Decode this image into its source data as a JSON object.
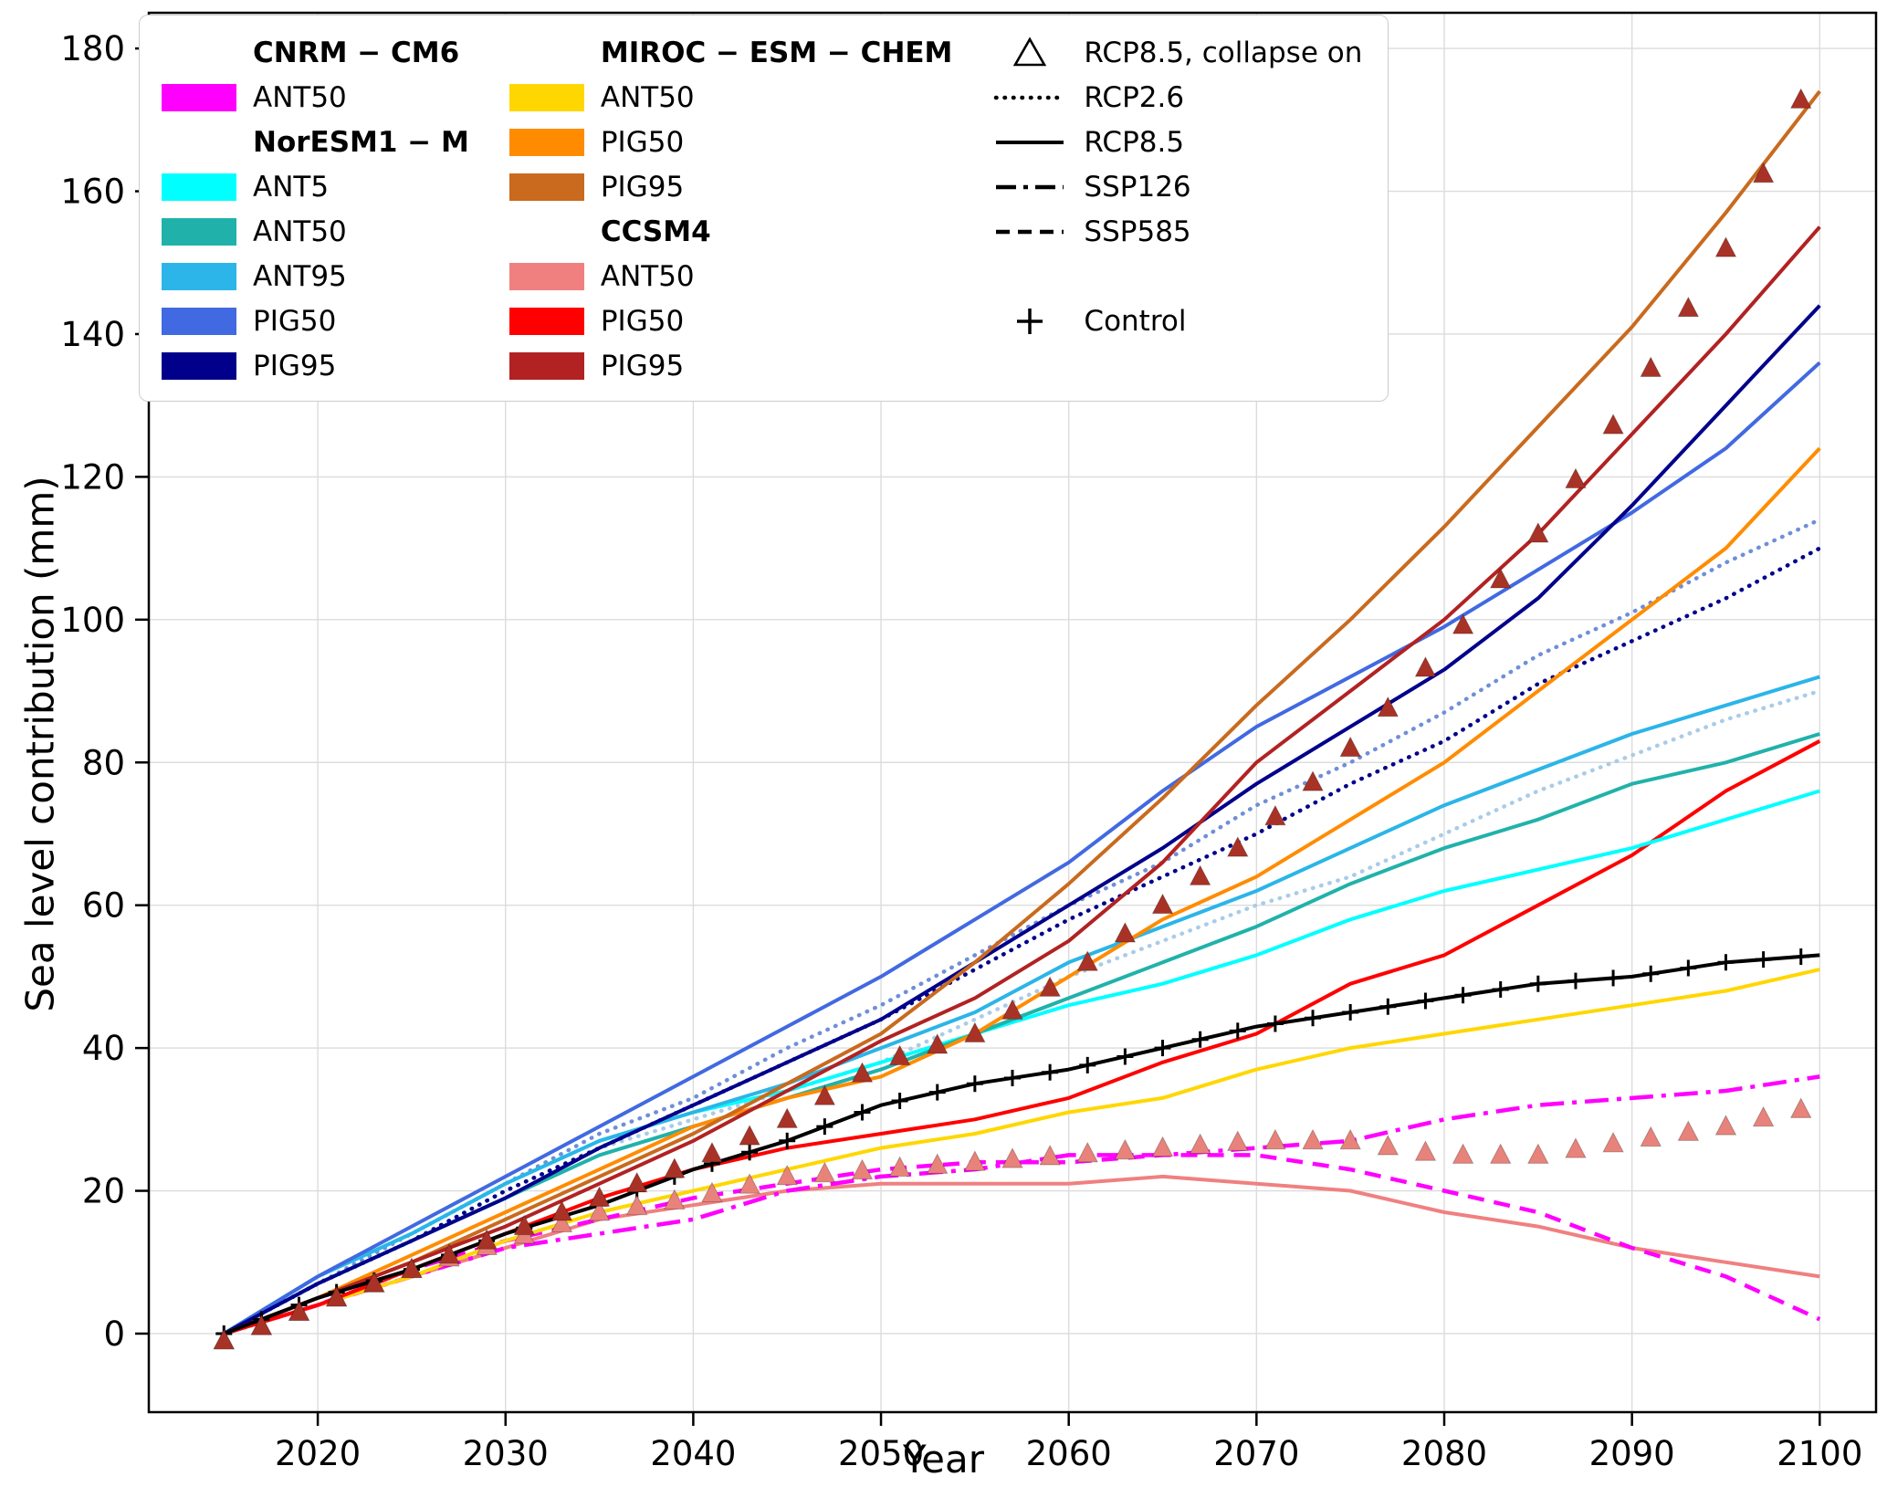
{
  "chart_data": {
    "type": "line",
    "title": "",
    "xlabel": "Year",
    "ylabel": "Sea level contribution (mm)",
    "xlim": [
      2011,
      2103
    ],
    "ylim": [
      -11,
      185
    ],
    "grid": true,
    "legend_position": "upper left",
    "xticks": [
      2020,
      2030,
      2040,
      2050,
      2060,
      2070,
      2080,
      2090,
      2100
    ],
    "xtick_labels": [
      "2020",
      "2030",
      "2040",
      "2050",
      "2060",
      "2070",
      "2080",
      "2090",
      "2100"
    ],
    "yticks": [
      0,
      20,
      40,
      60,
      80,
      100,
      120,
      140,
      160,
      180
    ],
    "ytick_labels": [
      "0",
      "20",
      "40",
      "60",
      "80",
      "100",
      "120",
      "140",
      "160",
      "180"
    ],
    "years": [
      2015,
      2020,
      2025,
      2030,
      2035,
      2040,
      2045,
      2050,
      2055,
      2060,
      2065,
      2070,
      2075,
      2080,
      2085,
      2090,
      2095,
      2100
    ],
    "series": [
      {
        "name": "NorESM1-M ANT95 RCP2.6",
        "color": "#A9CCE8",
        "style": "dotted",
        "values": [
          0,
          7,
          13,
          20,
          26,
          30,
          34,
          38,
          44,
          50,
          55,
          60,
          64,
          70,
          76,
          81,
          86,
          90
        ]
      },
      {
        "name": "NorESM1-M PIG50 RCP2.6",
        "color": "#6F8FD8",
        "style": "dotted",
        "values": [
          0,
          7,
          14,
          21,
          28,
          33,
          40,
          46,
          53,
          60,
          66,
          74,
          80,
          87,
          95,
          101,
          108,
          114
        ]
      },
      {
        "name": "NorESM1-M PIG95 RCP2.6",
        "color": "#00008B",
        "style": "dotted",
        "values": [
          0,
          7,
          13,
          20,
          26,
          32,
          38,
          44,
          51,
          58,
          64,
          70,
          77,
          83,
          91,
          97,
          103,
          110
        ]
      },
      {
        "name": "CCSM4 ANT50 RCP8.5",
        "color": "#F08080",
        "style": "solid",
        "values": [
          0,
          4,
          8,
          12,
          16,
          18,
          20,
          21,
          21,
          21,
          22,
          21,
          20,
          17,
          15,
          12,
          10,
          8
        ]
      },
      {
        "name": "CNRM-CM6 ANT50 SSP585",
        "color": "#FF00FF",
        "style": "dashed",
        "values": [
          0,
          4,
          9,
          13,
          16,
          19,
          21,
          23,
          24,
          24,
          25,
          25,
          23,
          20,
          17,
          12,
          8,
          2
        ]
      },
      {
        "name": "CNRM-CM6 ANT50 SSP126",
        "color": "#FF00FF",
        "style": "dashdot",
        "values": [
          0,
          4,
          8,
          12,
          14,
          16,
          20,
          22,
          23,
          25,
          25,
          26,
          27,
          30,
          32,
          33,
          34,
          36
        ]
      },
      {
        "name": "MIROC-ESM-CHEM ANT50 RCP8.5",
        "color": "#FFD700",
        "style": "solid",
        "values": [
          0,
          4,
          8,
          13,
          17,
          20,
          23,
          26,
          28,
          31,
          33,
          37,
          40,
          42,
          44,
          46,
          48,
          51
        ]
      },
      {
        "name": "CCSM4 PIG50 RCP8.5",
        "color": "#FF0000",
        "style": "solid",
        "values": [
          0,
          4,
          9,
          14,
          19,
          23,
          26,
          28,
          30,
          33,
          38,
          42,
          49,
          53,
          60,
          67,
          76,
          83
        ]
      },
      {
        "name": "NorESM1-M ANT5 RCP8.5",
        "color": "#00FFFF",
        "style": "solid",
        "values": [
          0,
          8,
          14,
          21,
          27,
          31,
          34,
          38,
          42,
          46,
          49,
          53,
          58,
          62,
          65,
          68,
          72,
          76
        ]
      },
      {
        "name": "NorESM1-M ANT50 RCP8.5",
        "color": "#20B2AA",
        "style": "solid",
        "values": [
          0,
          7,
          13,
          19,
          25,
          29,
          33,
          37,
          42,
          47,
          52,
          57,
          63,
          68,
          72,
          77,
          80,
          84
        ]
      },
      {
        "name": "NorESM1-M ANT95 RCP8.5",
        "color": "#2BB5E8",
        "style": "solid",
        "values": [
          0,
          8,
          14,
          21,
          27,
          31,
          35,
          40,
          45,
          52,
          57,
          62,
          68,
          74,
          79,
          84,
          88,
          92
        ]
      },
      {
        "name": "NorESM1-M PIG50 RCP8.5",
        "color": "#4169E1",
        "style": "solid",
        "values": [
          0,
          8,
          15,
          22,
          29,
          36,
          43,
          50,
          58,
          66,
          76,
          85,
          92,
          99,
          107,
          115,
          124,
          136
        ]
      },
      {
        "name": "NorESM1-M PIG95 RCP8.5",
        "color": "#00008B",
        "style": "solid",
        "values": [
          0,
          7,
          13,
          19,
          26,
          32,
          38,
          44,
          52,
          60,
          68,
          77,
          85,
          93,
          103,
          116,
          130,
          144
        ]
      },
      {
        "name": "MIROC-ESM-CHEM PIG50 RCP8.5",
        "color": "#FF8C00",
        "style": "solid",
        "values": [
          0,
          5,
          11,
          17,
          23,
          29,
          33,
          36,
          42,
          50,
          58,
          64,
          72,
          80,
          90,
          100,
          110,
          124
        ]
      },
      {
        "name": "MIROC-ESM-CHEM PIG95 RCP8.5",
        "color": "#C96A1E",
        "style": "solid",
        "values": [
          0,
          5,
          10,
          16,
          22,
          28,
          35,
          42,
          52,
          63,
          75,
          88,
          100,
          113,
          127,
          141,
          157,
          174
        ]
      },
      {
        "name": "CCSM4 PIG95 RCP8.5",
        "color": "#B22222",
        "style": "solid",
        "values": [
          0,
          5,
          10,
          15,
          21,
          27,
          34,
          41,
          47,
          55,
          66,
          80,
          90,
          100,
          112,
          126,
          140,
          155
        ]
      },
      {
        "name": "Control",
        "color": "#000000",
        "style": "solid",
        "marker": "plus",
        "values": [
          0,
          5,
          9,
          14,
          18,
          23,
          27,
          32,
          35,
          37,
          40,
          43,
          45,
          47,
          49,
          50,
          52,
          53
        ]
      },
      {
        "name": "CCSM4 ANT50 RCP8.5 collapse on",
        "color": "#E8837B",
        "style": "triangles",
        "values": [
          -1,
          4,
          9,
          13,
          17,
          19,
          22,
          23,
          24,
          25,
          26,
          27,
          27,
          25,
          25,
          27,
          29,
          32
        ]
      },
      {
        "name": "CCSM4 PIG95 RCP8.5 collapse on",
        "color": "#A93226",
        "style": "triangles",
        "values": [
          -1,
          4,
          9,
          14,
          19,
          24,
          30,
          38,
          42,
          50,
          60,
          70,
          82,
          96,
          112,
          131,
          152,
          178
        ]
      }
    ]
  },
  "legend": {
    "columns": [
      {
        "items": [
          {
            "type": "header",
            "label": "CNRM − CM6"
          },
          {
            "type": "patch",
            "color": "#FF00FF",
            "label": "ANT50"
          },
          {
            "type": "header",
            "label": "NorESM1 − M"
          },
          {
            "type": "patch",
            "color": "#00FFFF",
            "label": "ANT5"
          },
          {
            "type": "patch",
            "color": "#20B2AA",
            "label": "ANT50"
          },
          {
            "type": "patch",
            "color": "#2BB5E8",
            "label": "ANT95"
          },
          {
            "type": "patch",
            "color": "#4169E1",
            "label": "PIG50"
          },
          {
            "type": "patch",
            "color": "#00008B",
            "label": "PIG95"
          }
        ]
      },
      {
        "items": [
          {
            "type": "header",
            "label": "MIROC − ESM − CHEM"
          },
          {
            "type": "patch",
            "color": "#FFD700",
            "label": "ANT50"
          },
          {
            "type": "patch",
            "color": "#FF8C00",
            "label": "PIG50"
          },
          {
            "type": "patch",
            "color": "#C96A1E",
            "label": "PIG95"
          },
          {
            "type": "header",
            "label": "CCSM4"
          },
          {
            "type": "patch",
            "color": "#F08080",
            "label": "ANT50"
          },
          {
            "type": "patch",
            "color": "#FF0000",
            "label": "PIG50"
          },
          {
            "type": "patch",
            "color": "#B22222",
            "label": "PIG95"
          }
        ]
      },
      {
        "items": [
          {
            "type": "marker-triangle",
            "label": "RCP8.5, collapse on"
          },
          {
            "type": "line-dotted",
            "label": "RCP2.6"
          },
          {
            "type": "line-solid",
            "label": "RCP8.5"
          },
          {
            "type": "line-dashdot",
            "label": "SSP126"
          },
          {
            "type": "line-dashed",
            "label": "SSP585"
          },
          {
            "type": "spacer",
            "label": ""
          },
          {
            "type": "marker-plus",
            "label": "Control"
          }
        ]
      }
    ]
  }
}
